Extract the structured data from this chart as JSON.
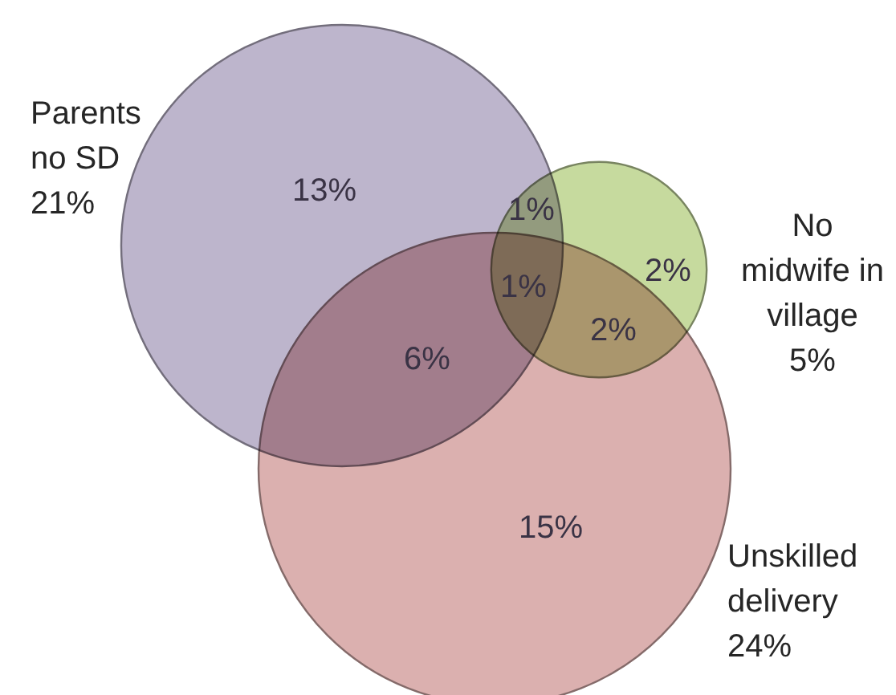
{
  "chart_data": {
    "type": "other",
    "categories": [
      "Parents no SD",
      "No midwife in village",
      "Unskilled delivery"
    ],
    "values": [
      21,
      5,
      24
    ],
    "value_labels": [
      "21%",
      "5%",
      "24%"
    ],
    "colors": [
      "#bdb5cc",
      "#c6da9e",
      "#dbb0af"
    ],
    "annotations": [
      "13%",
      "1%",
      "2%",
      "1%",
      "2%",
      "6%",
      "15%"
    ]
  }
}
